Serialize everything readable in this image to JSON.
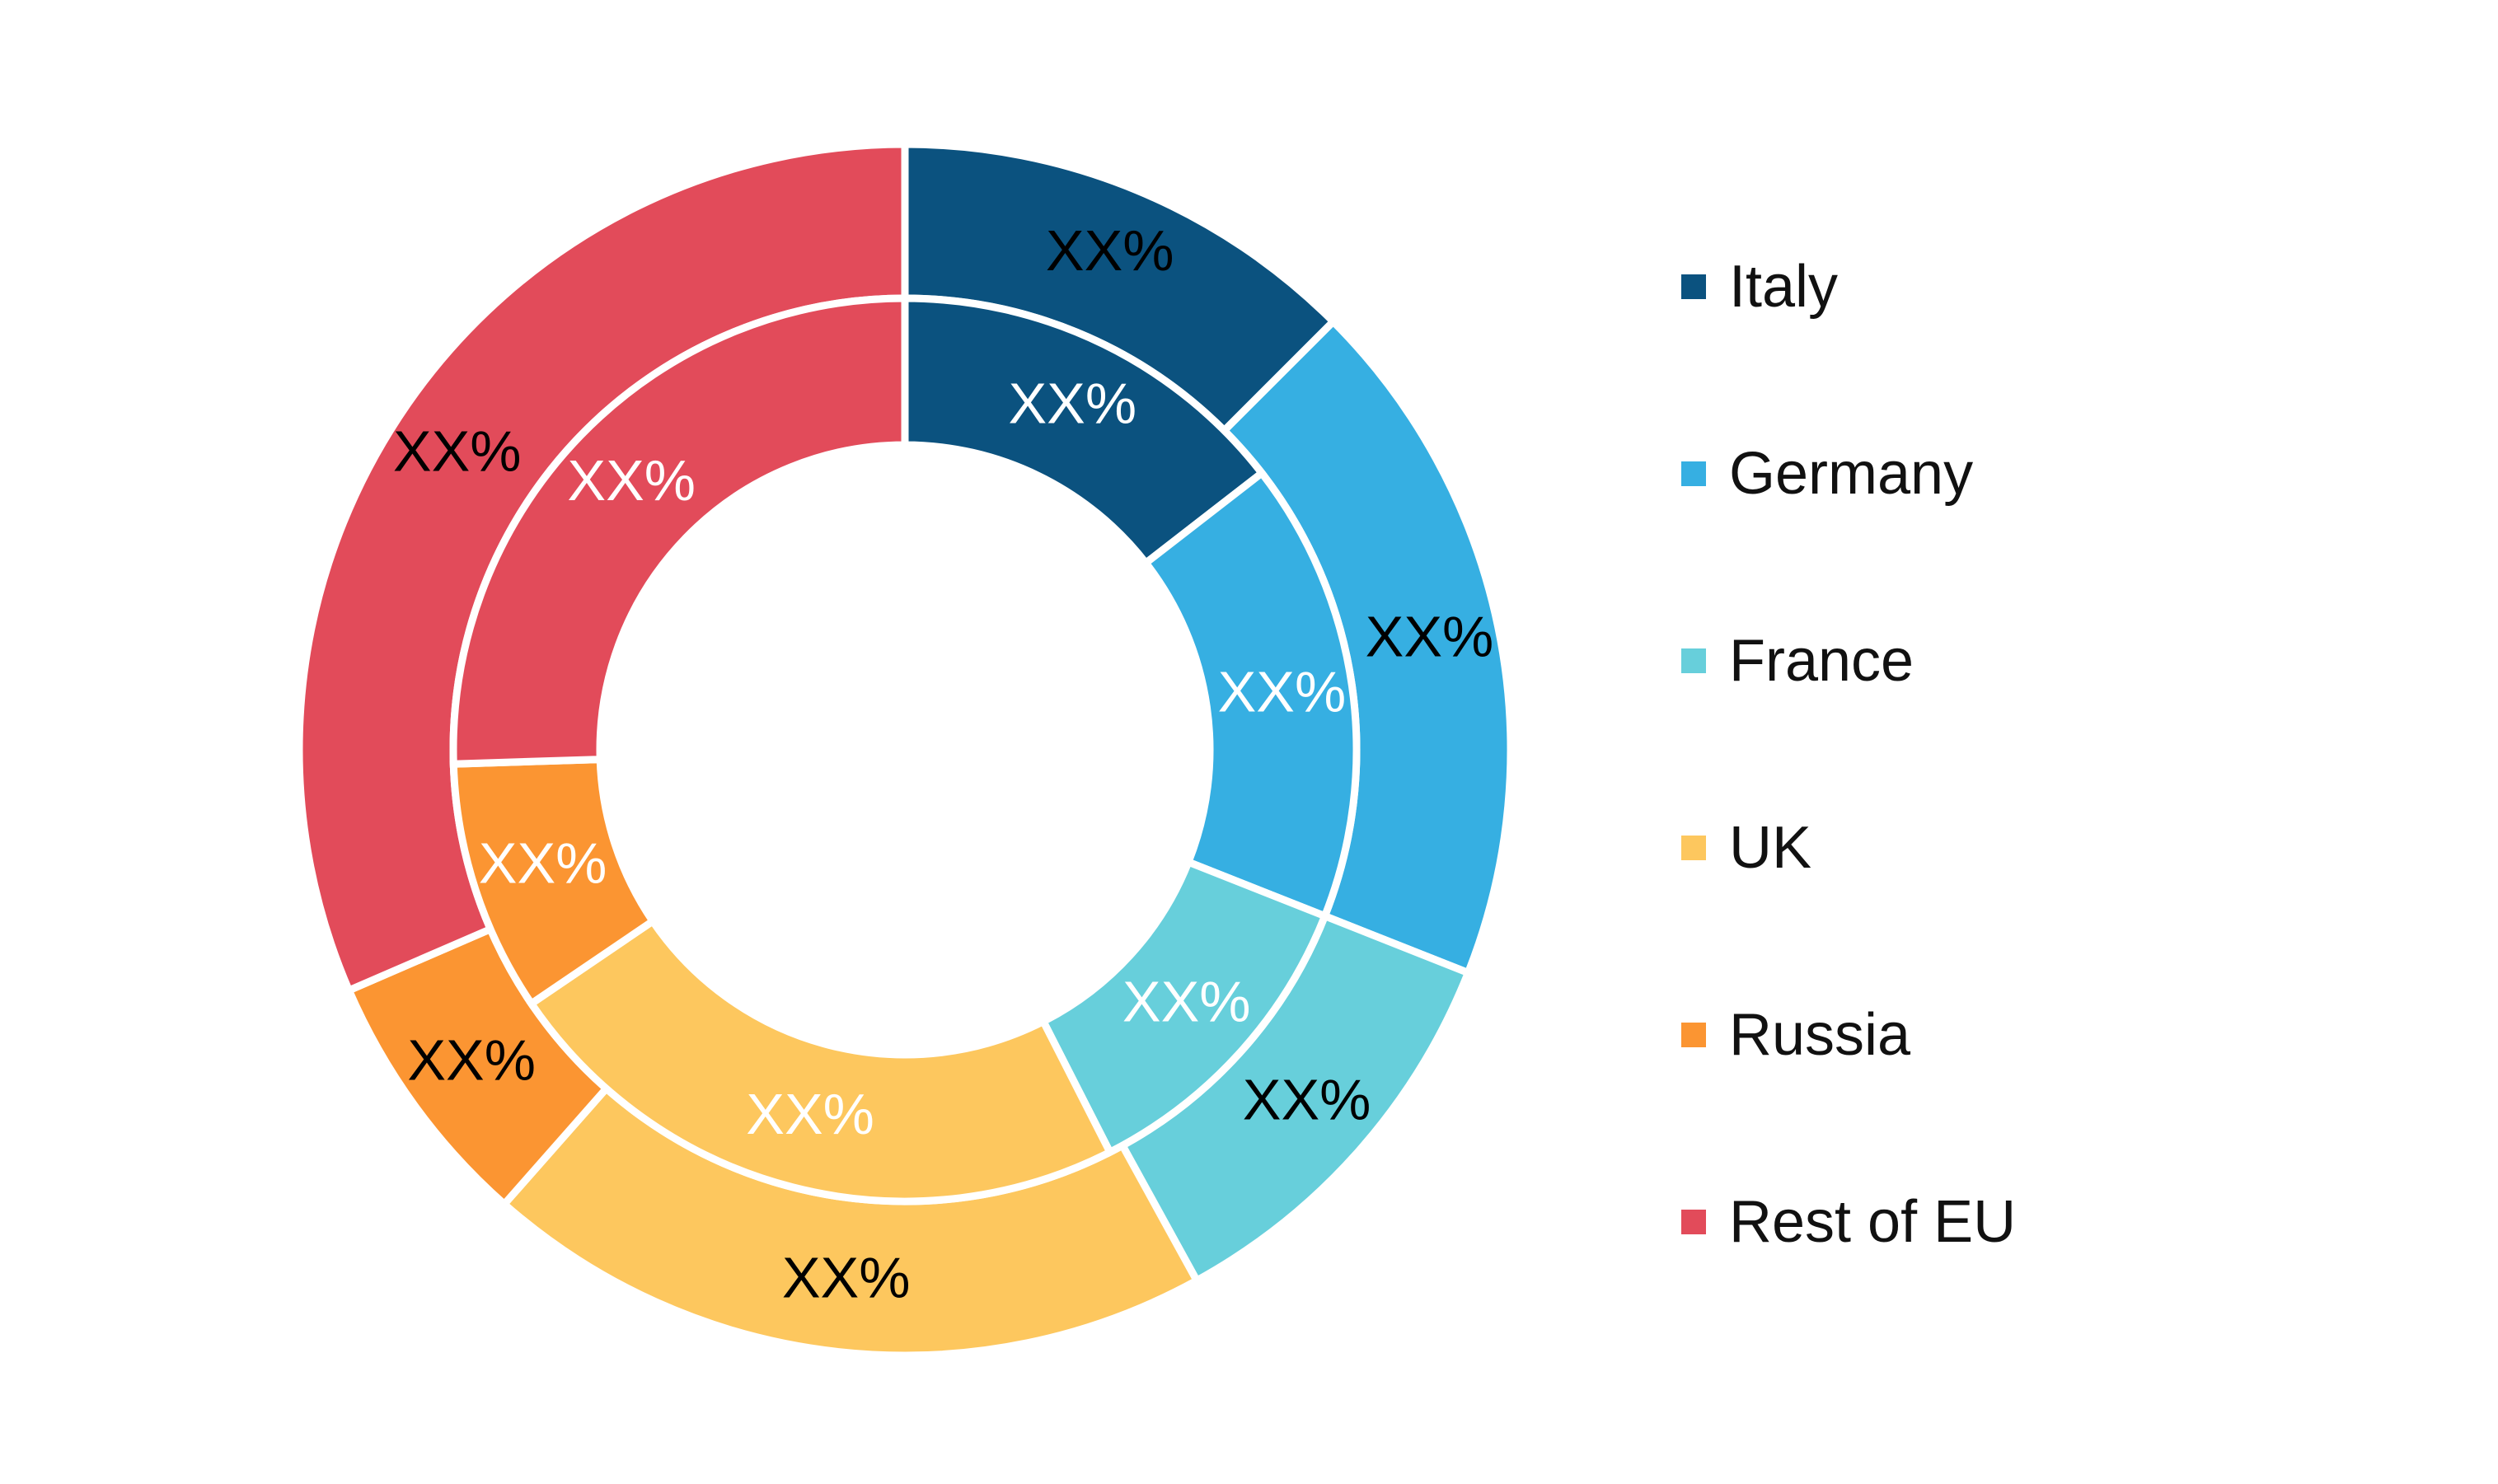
{
  "chart_data": {
    "type": "pie",
    "subtype": "nested-donut",
    "legend_position": "right",
    "categories": [
      "Italy",
      "Germany",
      "France",
      "UK",
      "Russia",
      "Rest of EU"
    ],
    "colors": [
      "#0B527F",
      "#36AFE2",
      "#67CFDB",
      "#FDC75E",
      "#FB9532",
      "#E24B5A"
    ],
    "series": [
      {
        "ring": "outer",
        "values": [
          12.5,
          18.5,
          11.0,
          19.5,
          7.0,
          31.5
        ],
        "labels": [
          "XX%",
          "XX%",
          "XX%",
          "XX%",
          "XX%",
          "XX%"
        ],
        "label_color": "#000000"
      },
      {
        "ring": "inner",
        "values": [
          14.5,
          16.5,
          11.5,
          23.0,
          9.0,
          25.5
        ],
        "labels": [
          "XX%",
          "XX%",
          "XX%",
          "XX%",
          "XX%",
          "XX%"
        ],
        "label_color": "#ffffff"
      }
    ]
  }
}
